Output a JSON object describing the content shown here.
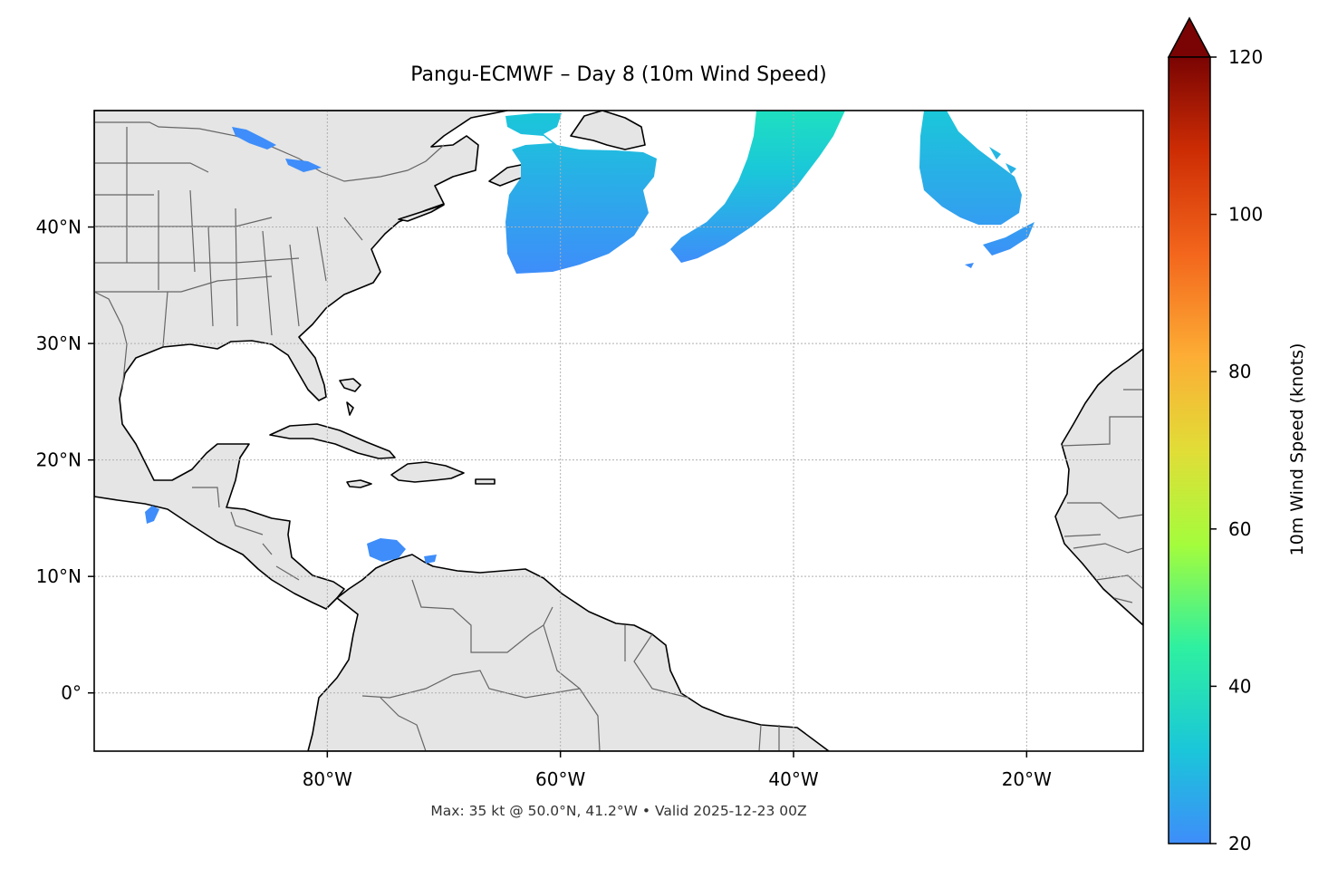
{
  "title": "Pangu-ECMWF – Day 8 (10m Wind Speed)",
  "caption": "Max: 35 kt @ 50.0°N, 41.2°W • Valid 2025-12-23 00Z",
  "map": {
    "extent": {
      "lon_min": -100,
      "lon_max": -10,
      "lat_min": -5,
      "lat_max": 50
    },
    "lon_ticks": [
      {
        "value": -80,
        "label": "80°W"
      },
      {
        "value": -60,
        "label": "60°W"
      },
      {
        "value": -40,
        "label": "40°W"
      },
      {
        "value": -20,
        "label": "20°W"
      }
    ],
    "lat_ticks": [
      {
        "value": 40,
        "label": "40°N"
      },
      {
        "value": 30,
        "label": "30°N"
      },
      {
        "value": 20,
        "label": "20°N"
      },
      {
        "value": 10,
        "label": "10°N"
      },
      {
        "value": 0,
        "label": "0°"
      }
    ],
    "gridlines": true,
    "land_color": "#e5e5e5",
    "ocean_color": "#ffffff",
    "coastline_color": "#000000",
    "border_color": "#666666"
  },
  "colorbar": {
    "label": "10m Wind Speed (knots)",
    "min": 20,
    "max": 120,
    "extend": "max",
    "ticks": [
      {
        "value": 20,
        "label": "20"
      },
      {
        "value": 40,
        "label": "40"
      },
      {
        "value": 60,
        "label": "60"
      },
      {
        "value": 80,
        "label": "80"
      },
      {
        "value": 100,
        "label": "100"
      },
      {
        "value": 120,
        "label": "120"
      }
    ],
    "colormap": "turbo",
    "colors": [
      "#3e8dfa",
      "#1ac7d9",
      "#2ef0a0",
      "#a4fc3c",
      "#e1dd37",
      "#fdad35",
      "#f3661c",
      "#ce2d04",
      "#7a0403"
    ]
  },
  "wind_features": [
    {
      "region": "Lake Superior",
      "max_kt": 23
    },
    {
      "region": "Gulf of St. Lawrence / Newfoundland",
      "max_kt": 30
    },
    {
      "region": "Central North Atlantic band",
      "max_kt": 35
    },
    {
      "region": "Eastern North Atlantic",
      "max_kt": 27
    },
    {
      "region": "Southern Caribbean",
      "max_kt": 22
    },
    {
      "region": "Gulf of Tehuantepec",
      "max_kt": 21
    }
  ]
}
